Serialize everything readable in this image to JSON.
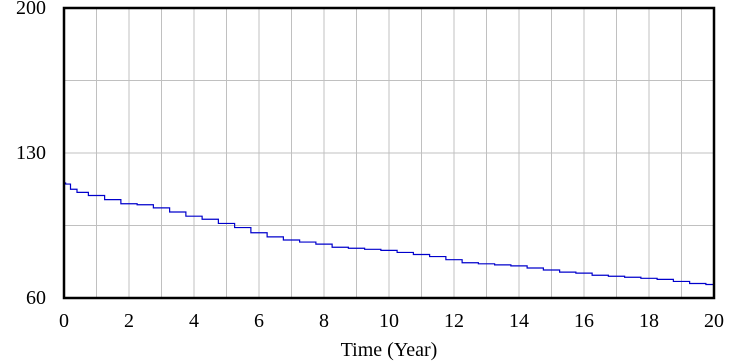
{
  "chart_data": {
    "type": "line",
    "title": "",
    "xlabel": "Time (Year)",
    "ylabel": "",
    "xlim": [
      0,
      20
    ],
    "ylim": [
      60,
      200
    ],
    "x_ticks": [
      0,
      2,
      4,
      6,
      8,
      10,
      12,
      14,
      16,
      18,
      20
    ],
    "y_tick_labels": [
      60,
      130,
      200
    ],
    "grid": true,
    "legend": "none",
    "series": [
      {
        "color": "#0000cc",
        "x": [
          0,
          0.1,
          0.3,
          0.5,
          1,
          1.5,
          2,
          2.5,
          3,
          3.5,
          4,
          4.5,
          5,
          5.5,
          6,
          6.5,
          7,
          7.5,
          8,
          8.5,
          9,
          9.5,
          10,
          10.5,
          11,
          11.5,
          12,
          12.5,
          13,
          13.5,
          14,
          14.5,
          15,
          15.5,
          16,
          16.5,
          17,
          17.5,
          18,
          18.5,
          19,
          19.5,
          20
        ],
        "y": [
          115.5,
          115.0,
          112.5,
          111.0,
          109.5,
          107.5,
          105.5,
          105.0,
          103.5,
          101.5,
          99.5,
          98.0,
          96.0,
          94.0,
          91.5,
          89.5,
          88.0,
          87.0,
          86.0,
          84.5,
          84.0,
          83.5,
          83.0,
          82.0,
          81.0,
          80.0,
          78.5,
          77.0,
          76.5,
          76.0,
          75.5,
          74.5,
          73.5,
          72.5,
          72.0,
          71.0,
          70.5,
          70.0,
          69.5,
          69.0,
          68.0,
          67.0,
          66.5
        ]
      }
    ]
  }
}
